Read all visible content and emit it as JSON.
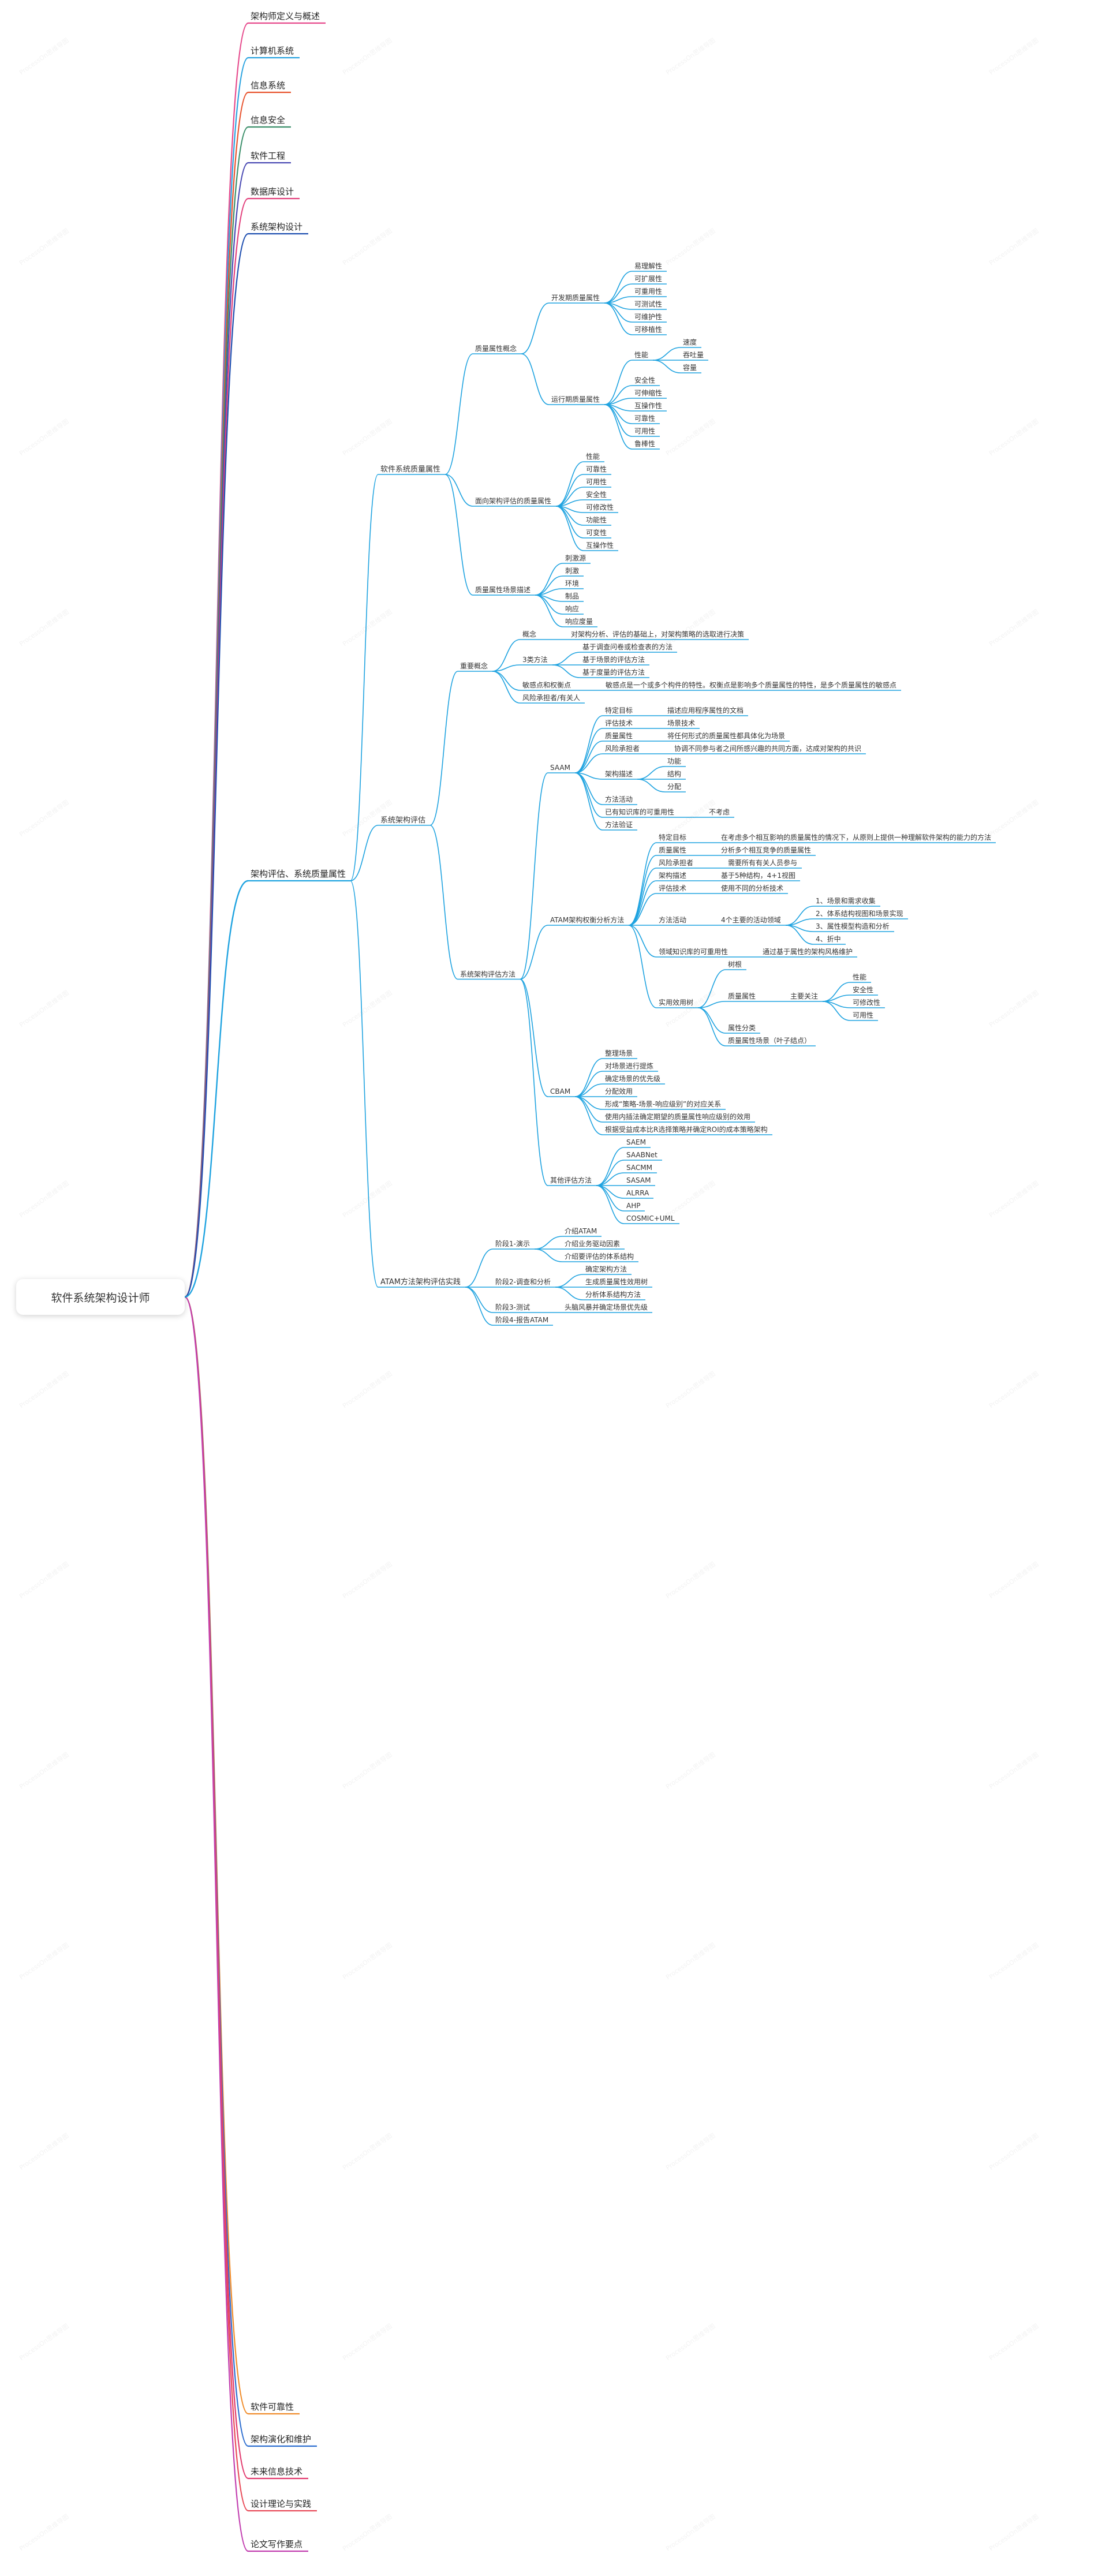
{
  "watermark": "ProcessOn思维导图",
  "root": "软件系统架构设计师",
  "branches": [
    {
      "label": "架构师定义与概述",
      "color": "#e64a8c"
    },
    {
      "label": "计算机系统",
      "color": "#2aa3e0"
    },
    {
      "label": "信息系统",
      "color": "#e8532e"
    },
    {
      "label": "信息安全",
      "color": "#3b8f6a"
    },
    {
      "label": "软件工程",
      "color": "#4a4ab3"
    },
    {
      "label": "数据库设计",
      "color": "#e2407c"
    },
    {
      "label": "系统架构设计",
      "color": "#1f4fb0"
    },
    {
      "label": "架构评估、系统质量属性",
      "color": "#1ba3e3"
    },
    {
      "label": "软件可靠性",
      "color": "#f08d2c"
    },
    {
      "label": "架构演化和维护",
      "color": "#2f6fd0"
    },
    {
      "label": "未来信息技术",
      "color": "#e23a6e"
    },
    {
      "label": "设计理论与实践",
      "color": "#e84b58"
    },
    {
      "label": "论文写作要点",
      "color": "#c23fb0"
    }
  ],
  "tree": {
    "label": "架构评估、系统质量属性",
    "children": [
      {
        "label": "软件系统质量属性",
        "children": [
          {
            "label": "质量属性概念",
            "children": [
              {
                "label": "开发期质量属性",
                "children": [
                  {
                    "label": "易理解性"
                  },
                  {
                    "label": "可扩展性"
                  },
                  {
                    "label": "可重用性"
                  },
                  {
                    "label": "可测试性"
                  },
                  {
                    "label": "可维护性"
                  },
                  {
                    "label": "可移植性"
                  }
                ]
              },
              {
                "label": "运行期质量属性",
                "children": [
                  {
                    "label": "性能",
                    "children": [
                      {
                        "label": "速度"
                      },
                      {
                        "label": "吞吐量"
                      },
                      {
                        "label": "容量"
                      }
                    ]
                  },
                  {
                    "label": "安全性"
                  },
                  {
                    "label": "可伸缩性"
                  },
                  {
                    "label": "互操作性"
                  },
                  {
                    "label": "可靠性"
                  },
                  {
                    "label": "可用性"
                  },
                  {
                    "label": "鲁棒性"
                  }
                ]
              }
            ]
          },
          {
            "label": "面向架构评估的质量属性",
            "children": [
              {
                "label": "性能"
              },
              {
                "label": "可靠性"
              },
              {
                "label": "可用性"
              },
              {
                "label": "安全性"
              },
              {
                "label": "可修改性"
              },
              {
                "label": "功能性"
              },
              {
                "label": "可变性"
              },
              {
                "label": "互操作性"
              }
            ]
          },
          {
            "label": "质量属性场景描述",
            "children": [
              {
                "label": "刺激源"
              },
              {
                "label": "刺激"
              },
              {
                "label": "环境"
              },
              {
                "label": "制品"
              },
              {
                "label": "响应"
              },
              {
                "label": "响应度量"
              }
            ]
          }
        ]
      },
      {
        "label": "系统架构评估",
        "children": [
          {
            "label": "重要概念",
            "children": [
              {
                "label": "概念",
                "children": [
                  {
                    "label": "对架构分析、评估的基础上，对架构策略的选取进行决策"
                  }
                ]
              },
              {
                "label": "3类方法",
                "children": [
                  {
                    "label": "基于调查问卷或检查表的方法"
                  },
                  {
                    "label": "基于场景的评估方法"
                  },
                  {
                    "label": "基于度量的评估方法"
                  }
                ]
              },
              {
                "label": "敏感点和权衡点",
                "children": [
                  {
                    "label": "敏感点是一个或多个构件的特性。权衡点是影响多个质量属性的特性，是多个质量属性的敏感点"
                  }
                ]
              },
              {
                "label": "风险承担者/有关人"
              }
            ]
          },
          {
            "label": "系统架构评估方法",
            "children": [
              {
                "label": "SAAM",
                "children": [
                  {
                    "label": "特定目标",
                    "children": [
                      {
                        "label": "描述应用程序属性的文档"
                      }
                    ]
                  },
                  {
                    "label": "评估技术",
                    "children": [
                      {
                        "label": "场景技术"
                      }
                    ]
                  },
                  {
                    "label": "质量属性",
                    "children": [
                      {
                        "label": "将任何形式的质量属性都具体化为场景"
                      }
                    ]
                  },
                  {
                    "label": "风险承担者",
                    "children": [
                      {
                        "label": "协调不同参与者之间所感兴趣的共同方面，达成对架构的共识"
                      }
                    ]
                  },
                  {
                    "label": "架构描述",
                    "children": [
                      {
                        "label": "功能"
                      },
                      {
                        "label": "结构"
                      },
                      {
                        "label": "分配"
                      }
                    ]
                  },
                  {
                    "label": "方法活动"
                  },
                  {
                    "label": "已有知识库的可重用性",
                    "children": [
                      {
                        "label": "不考虑"
                      }
                    ]
                  },
                  {
                    "label": "方法验证"
                  }
                ]
              },
              {
                "label": "ATAM架构权衡分析方法",
                "children": [
                  {
                    "label": "特定目标",
                    "children": [
                      {
                        "label": "在考虑多个相互影响的质量属性的情况下，从原则上提供一种理解软件架构的能力的方法"
                      }
                    ]
                  },
                  {
                    "label": "质量属性",
                    "children": [
                      {
                        "label": "分析多个相互竞争的质量属性"
                      }
                    ]
                  },
                  {
                    "label": "风险承担者",
                    "children": [
                      {
                        "label": "需要所有有关人员参与"
                      }
                    ]
                  },
                  {
                    "label": "架构描述",
                    "children": [
                      {
                        "label": "基于5种结构，4+1视图"
                      }
                    ]
                  },
                  {
                    "label": "评估技术",
                    "children": [
                      {
                        "label": "使用不同的分析技术"
                      }
                    ]
                  },
                  {
                    "label": "方法活动",
                    "children": [
                      {
                        "label": "4个主要的活动领域",
                        "children": [
                          {
                            "label": "1、场景和需求收集"
                          },
                          {
                            "label": "2、体系结构视图和场景实现"
                          },
                          {
                            "label": "3、属性模型构造和分析"
                          },
                          {
                            "label": "4、折中"
                          }
                        ]
                      }
                    ]
                  },
                  {
                    "label": "领域知识库的可重用性",
                    "children": [
                      {
                        "label": "通过基于属性的架构风格维护"
                      }
                    ]
                  },
                  {
                    "label": "实用效用树",
                    "children": [
                      {
                        "label": "树根"
                      },
                      {
                        "label": "质量属性",
                        "children": [
                          {
                            "label": "主要关注",
                            "children": [
                              {
                                "label": "性能"
                              },
                              {
                                "label": "安全性"
                              },
                              {
                                "label": "可修改性"
                              },
                              {
                                "label": "可用性"
                              }
                            ]
                          }
                        ]
                      },
                      {
                        "label": "属性分类"
                      },
                      {
                        "label": "质量属性场景（叶子结点）"
                      }
                    ]
                  }
                ]
              },
              {
                "label": "CBAM",
                "children": [
                  {
                    "label": "整理场景"
                  },
                  {
                    "label": "对场景进行提炼"
                  },
                  {
                    "label": "确定场景的优先级"
                  },
                  {
                    "label": "分配效用"
                  },
                  {
                    "label": "形成“策略-场景-响应级别”的对应关系"
                  },
                  {
                    "label": "使用内插法确定期望的质量属性响应级别的效用"
                  },
                  {
                    "label": "根据受益成本比R选择策略并确定ROI的成本策略架构"
                  }
                ]
              },
              {
                "label": "其他评估方法",
                "children": [
                  {
                    "label": "SAEM"
                  },
                  {
                    "label": "SAABNet"
                  },
                  {
                    "label": "SACMM"
                  },
                  {
                    "label": "SASAM"
                  },
                  {
                    "label": "ALRRA"
                  },
                  {
                    "label": "AHP"
                  },
                  {
                    "label": "COSMIC+UML"
                  }
                ]
              }
            ]
          }
        ]
      },
      {
        "label": "ATAM方法架构评估实践",
        "children": [
          {
            "label": "阶段1-演示",
            "children": [
              {
                "label": "介绍ATAM"
              },
              {
                "label": "介绍业务驱动因素"
              },
              {
                "label": "介绍要评估的体系结构"
              }
            ]
          },
          {
            "label": "阶段2-调查和分析",
            "children": [
              {
                "label": "确定架构方法"
              },
              {
                "label": "生成质量属性效用树"
              },
              {
                "label": "分析体系结构方法"
              }
            ]
          },
          {
            "label": "阶段3-测试",
            "children": [
              {
                "label": "头脑风暴并确定场景优先级"
              }
            ]
          },
          {
            "label": "阶段4-报告ATAM"
          }
        ]
      }
    ]
  }
}
